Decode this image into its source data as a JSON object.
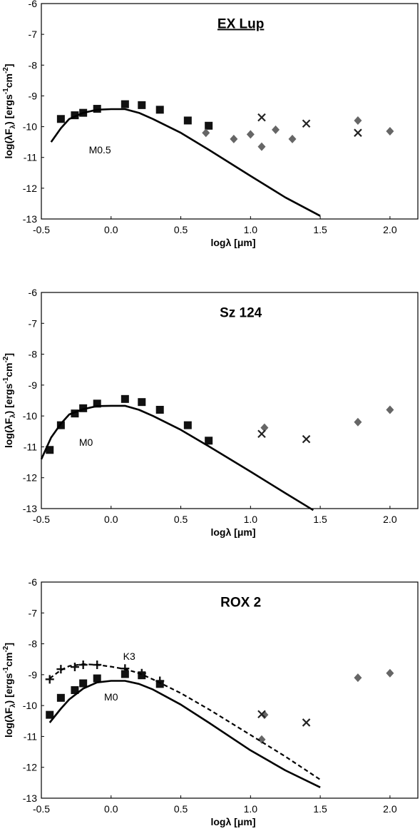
{
  "chart_data": [
    {
      "type": "scatter",
      "title": "EX Lup",
      "title_underlined": true,
      "xlabel": "logλ [μm]",
      "ylabel": "log(λF_λ) [ergs^-1cm^-2]",
      "ylabel_parts": [
        "log(λF",
        "λ",
        ") [ergs",
        "-1",
        "cm",
        "-2",
        "]"
      ],
      "xlim": [
        -0.5,
        2.2
      ],
      "ylim": [
        -13,
        -6
      ],
      "xticks": [
        -0.5,
        0.0,
        0.5,
        1.0,
        1.5,
        2.0
      ],
      "xtick_labels": [
        "-0.5",
        "0.0",
        "0.5",
        "1.0",
        "1.5",
        "2.0"
      ],
      "yticks": [
        -13,
        -12,
        -11,
        -10,
        -9,
        -8,
        -7,
        -6
      ],
      "ytick_labels": [
        "-13",
        "-12",
        "-11",
        "-10",
        "-9",
        "-8",
        "-7",
        "-6"
      ],
      "annotations": [
        {
          "text": "M0.5",
          "x": -0.08,
          "y": -10.75
        }
      ],
      "series": [
        {
          "marker": "square",
          "x": [
            -0.36,
            -0.26,
            -0.2,
            -0.1,
            0.1,
            0.22,
            0.35,
            0.55,
            0.7
          ],
          "y": [
            -9.75,
            -9.63,
            -9.55,
            -9.42,
            -9.27,
            -9.3,
            -9.45,
            -9.8,
            -9.97
          ]
        },
        {
          "marker": "diamond",
          "x": [
            0.68,
            0.88,
            1.0,
            1.08,
            1.18,
            1.3,
            1.77,
            2.0
          ],
          "y": [
            -10.2,
            -10.4,
            -10.25,
            -10.65,
            -10.1,
            -10.4,
            -9.8,
            -10.15
          ]
        },
        {
          "marker": "x",
          "x": [
            1.08,
            1.4,
            1.77
          ],
          "y": [
            -9.7,
            -9.9,
            -10.2
          ]
        },
        {
          "marker": "line",
          "style": "solid",
          "x": [
            -0.43,
            -0.36,
            -0.3,
            -0.2,
            -0.1,
            0.0,
            0.1,
            0.2,
            0.3,
            0.5,
            0.7,
            1.0,
            1.25,
            1.5
          ],
          "y": [
            -10.5,
            -10.05,
            -9.75,
            -9.55,
            -9.45,
            -9.43,
            -9.43,
            -9.55,
            -9.75,
            -10.2,
            -10.75,
            -11.6,
            -12.3,
            -12.9
          ]
        }
      ]
    },
    {
      "type": "scatter",
      "title": "Sz 124",
      "title_underlined": false,
      "xlabel": "logλ [μm]",
      "ylabel": "log(λF_λ) [ergs^-1cm^-2]",
      "ylabel_parts": [
        "log(λF",
        "λ",
        ") [ergs",
        "-1",
        "cm",
        "-2",
        "]"
      ],
      "xlim": [
        -0.5,
        2.2
      ],
      "ylim": [
        -13,
        -6
      ],
      "xticks": [
        -0.5,
        0.0,
        0.5,
        1.0,
        1.5,
        2.0
      ],
      "xtick_labels": [
        "-0.5",
        "0.0",
        "0.5",
        "1.0",
        "1.5",
        "2.0"
      ],
      "yticks": [
        -13,
        -12,
        -11,
        -10,
        -9,
        -8,
        -7,
        -6
      ],
      "ytick_labels": [
        "-13",
        "-12",
        "-11",
        "-10",
        "-9",
        "-8",
        "-7",
        "-6"
      ],
      "annotations": [
        {
          "text": "M0",
          "x": -0.18,
          "y": -10.85
        }
      ],
      "series": [
        {
          "marker": "square",
          "x": [
            -0.44,
            -0.36,
            -0.26,
            -0.2,
            -0.1,
            0.1,
            0.22,
            0.35,
            0.55,
            0.7
          ],
          "y": [
            -11.1,
            -10.3,
            -9.92,
            -9.75,
            -9.6,
            -9.45,
            -9.55,
            -9.8,
            -10.3,
            -10.8
          ]
        },
        {
          "marker": "diamond",
          "x": [
            1.1,
            1.77,
            2.0
          ],
          "y": [
            -10.38,
            -10.2,
            -9.8
          ]
        },
        {
          "marker": "x",
          "x": [
            1.08,
            1.4
          ],
          "y": [
            -10.58,
            -10.75
          ]
        },
        {
          "marker": "line",
          "style": "solid",
          "x": [
            -0.5,
            -0.43,
            -0.36,
            -0.3,
            -0.2,
            -0.1,
            0.0,
            0.1,
            0.2,
            0.3,
            0.5,
            0.7,
            1.0,
            1.25,
            1.45
          ],
          "y": [
            -11.4,
            -10.7,
            -10.25,
            -9.95,
            -9.78,
            -9.68,
            -9.67,
            -9.67,
            -9.8,
            -10.0,
            -10.45,
            -10.98,
            -11.8,
            -12.5,
            -13.05
          ]
        }
      ]
    },
    {
      "type": "scatter",
      "title": "ROX 2",
      "title_underlined": false,
      "xlabel": "logλ [μm]",
      "ylabel": "log(λF_λ) [ergs^-1cm^-2]",
      "ylabel_parts": [
        "log(λF",
        "λ",
        ") [ergs",
        "-1",
        "cm",
        "-2",
        "]"
      ],
      "xlim": [
        -0.5,
        2.2
      ],
      "ylim": [
        -13,
        -6
      ],
      "xticks": [
        -0.5,
        0.0,
        0.5,
        1.0,
        1.5,
        2.0
      ],
      "xtick_labels": [
        "-0.5",
        "0.0",
        "0.5",
        "1.0",
        "1.5",
        "2.0"
      ],
      "yticks": [
        -13,
        -12,
        -11,
        -10,
        -9,
        -8,
        -7,
        -6
      ],
      "ytick_labels": [
        "-13",
        "-12",
        "-11",
        "-10",
        "-9",
        "-8",
        "-7",
        "-6"
      ],
      "annotations": [
        {
          "text": "K3",
          "x": 0.13,
          "y": -8.4
        },
        {
          "text": "M0",
          "x": 0.0,
          "y": -9.72
        }
      ],
      "series": [
        {
          "marker": "square",
          "x": [
            -0.44,
            -0.36,
            -0.26,
            -0.2,
            -0.1,
            0.1,
            0.22,
            0.35
          ],
          "y": [
            -10.3,
            -9.75,
            -9.5,
            -9.28,
            -9.12,
            -8.98,
            -9.02,
            -9.3
          ]
        },
        {
          "marker": "plus",
          "x": [
            -0.44,
            -0.36,
            -0.26,
            -0.2,
            -0.1,
            0.1,
            0.22,
            0.35
          ],
          "y": [
            -9.15,
            -8.82,
            -8.75,
            -8.68,
            -8.68,
            -8.8,
            -8.95,
            -9.2
          ]
        },
        {
          "marker": "diamond",
          "x": [
            1.08,
            1.1,
            1.77,
            2.0
          ],
          "y": [
            -11.1,
            -10.3,
            -9.1,
            -8.95
          ]
        },
        {
          "marker": "x",
          "x": [
            1.08,
            1.4
          ],
          "y": [
            -10.28,
            -10.55
          ]
        },
        {
          "marker": "line",
          "style": "dashed",
          "x": [
            -0.44,
            -0.36,
            -0.3,
            -0.2,
            -0.1,
            0.0,
            0.1,
            0.2,
            0.3,
            0.5,
            0.7,
            1.0,
            1.25,
            1.5
          ],
          "y": [
            -9.12,
            -8.85,
            -8.72,
            -8.66,
            -8.68,
            -8.74,
            -8.82,
            -8.95,
            -9.15,
            -9.6,
            -10.12,
            -10.95,
            -11.65,
            -12.4
          ]
        },
        {
          "marker": "line",
          "style": "solid",
          "x": [
            -0.44,
            -0.36,
            -0.3,
            -0.2,
            -0.1,
            0.0,
            0.1,
            0.2,
            0.3,
            0.5,
            0.7,
            1.0,
            1.25,
            1.5
          ],
          "y": [
            -10.55,
            -10.1,
            -9.8,
            -9.45,
            -9.25,
            -9.2,
            -9.2,
            -9.3,
            -9.48,
            -9.97,
            -10.55,
            -11.45,
            -12.1,
            -12.65
          ]
        }
      ]
    }
  ]
}
